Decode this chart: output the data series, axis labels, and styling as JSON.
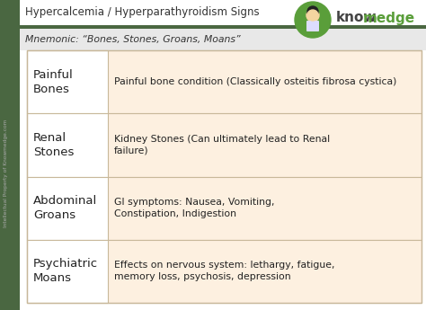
{
  "title": "Hypercalcemia / Hyperparathyroidism Signs",
  "mnemonic": "Mnemonic: “Bones, Stones, Groans, Moans”",
  "header_bg": "#ffffff",
  "header_text_color": "#333333",
  "mnemonic_bg": "#f0f0f0",
  "mnemonic_text_color": "#333333",
  "sidebar_color": "#4a6741",
  "divider_color": "#4a6741",
  "table_border_color": "#c8b89a",
  "row_bg": "#fdf0e0",
  "left_col_bg": "#ffffff",
  "row_text_color": "#222222",
  "watermark": "Intellectual Property of Knowmedge.com",
  "brand_know_color": "#444444",
  "brand_medge_color": "#5a9e3a",
  "doctor_circle_color": "#5a9e3a",
  "rows": [
    {
      "left": "Painful\nBones",
      "right": "Painful bone condition (Classically osteitis fibrosa cystica)"
    },
    {
      "left": "Renal\nStones",
      "right": "Kidney Stones (Can ultimately lead to Renal\nfailure)"
    },
    {
      "left": "Abdominal\nGroans",
      "right": "GI symptoms: Nausea, Vomiting,\nConstipation, Indigestion"
    },
    {
      "left": "Psychiatric\nMoans",
      "right": "Effects on nervous system: lethargy, fatigue,\nmemory loss, psychosis, depression"
    }
  ]
}
